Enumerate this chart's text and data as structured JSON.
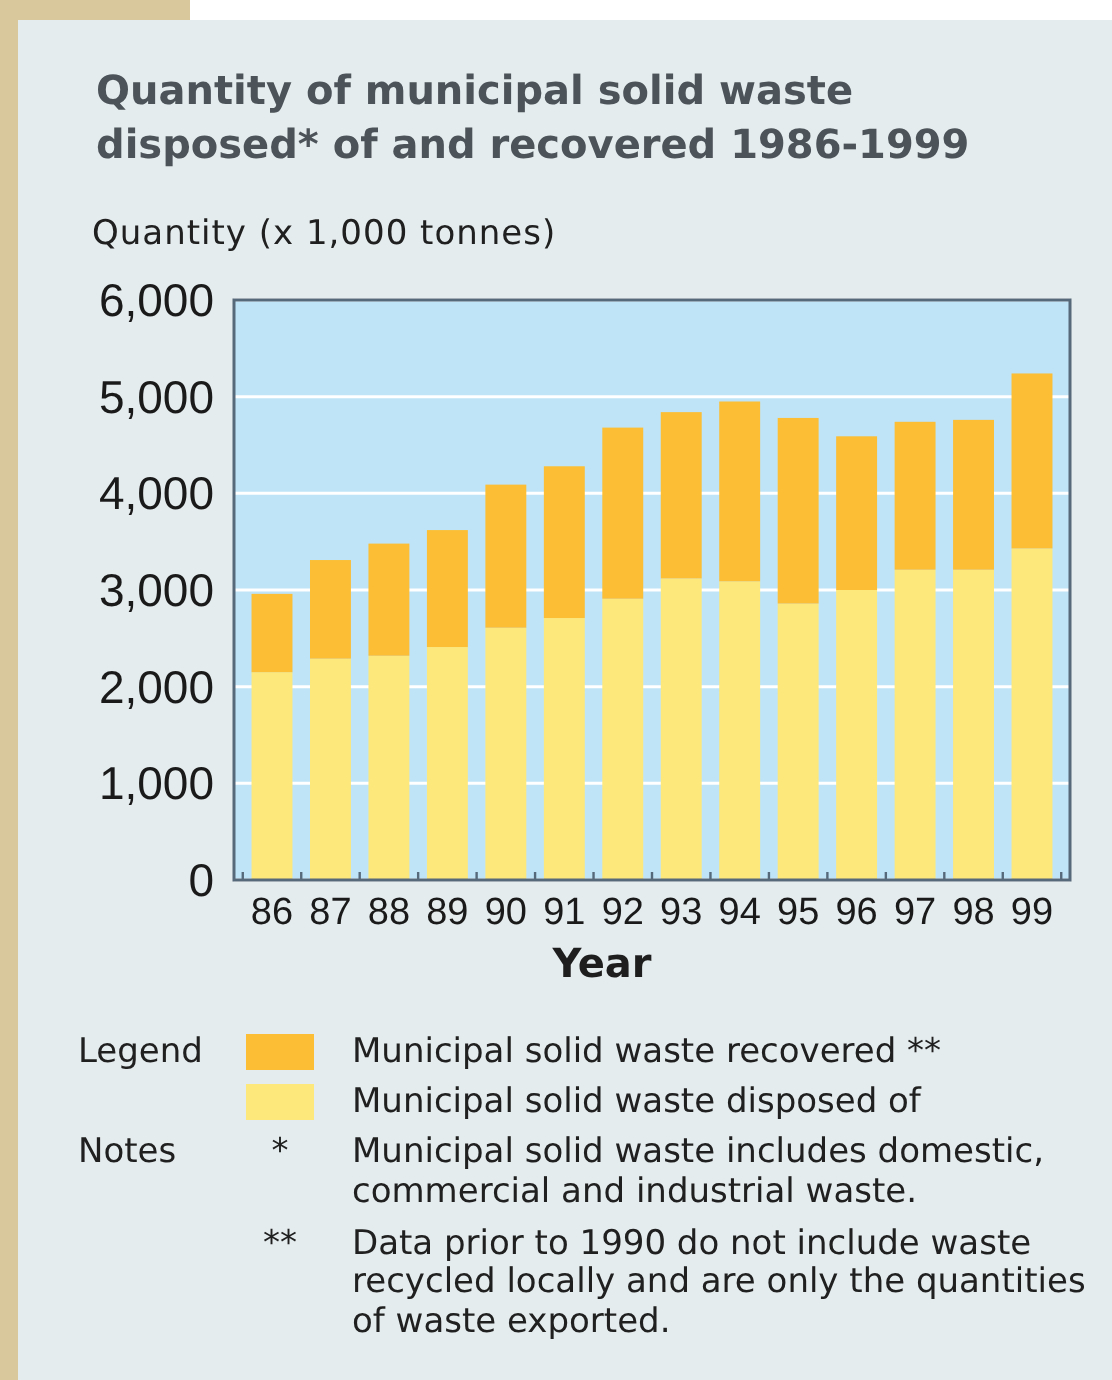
{
  "chart_data": {
    "type": "bar",
    "title": "Quantity of municipal solid waste disposed* of and recovered 1986-1999",
    "ylabel": "Quantity (x 1,000 tonnes)",
    "xlabel": "Year",
    "legend_title": "Legend",
    "categories": [
      "86",
      "87",
      "88",
      "89",
      "90",
      "91",
      "92",
      "93",
      "94",
      "95",
      "96",
      "97",
      "98",
      "99"
    ],
    "series": [
      {
        "name": "Municipal solid waste disposed of",
        "color": "#fde87c",
        "values": [
          2150,
          2290,
          2320,
          2410,
          2610,
          2710,
          2910,
          3120,
          3090,
          2860,
          3000,
          3210,
          3210,
          3430
        ]
      },
      {
        "name": "Municipal solid waste recovered **",
        "color": "#fbbe35",
        "values": [
          810,
          1020,
          1160,
          1210,
          1480,
          1570,
          1770,
          1720,
          1860,
          1920,
          1590,
          1530,
          1550,
          1810
        ]
      }
    ],
    "stacked": true,
    "ylim": [
      0,
      6000
    ],
    "yticks": [
      0,
      {
        "value": 1000,
        "label": "1,000"
      },
      {
        "value": 2000,
        "label": "2,000"
      },
      {
        "value": 3000,
        "label": "3,000"
      },
      {
        "value": 4000,
        "label": "4,000"
      },
      {
        "value": 5000,
        "label": "5,000"
      },
      {
        "value": 6000,
        "label": "6,000"
      }
    ],
    "grid": "y",
    "legend": "bottom",
    "annotations": [
      "Notes",
      "*",
      "Municipal solid waste includes domestic, commercial and industrial waste.",
      "**",
      "Data prior to 1990 do not include waste recycled locally and are only the quantities of waste exported."
    ]
  }
}
